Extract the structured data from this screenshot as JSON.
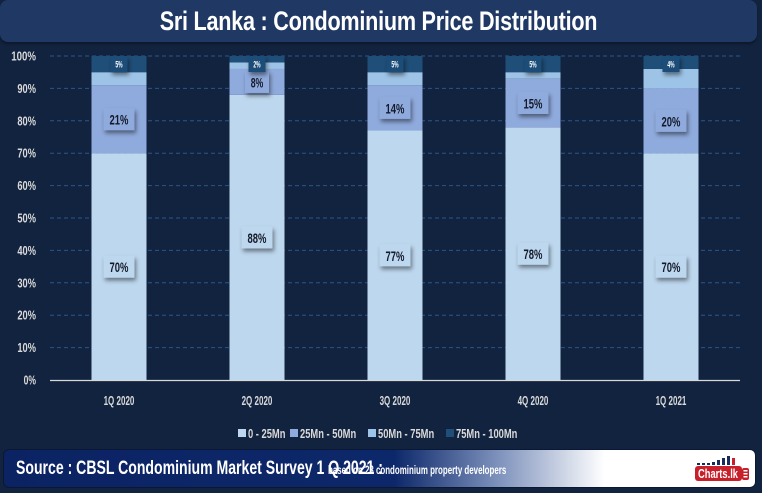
{
  "title": "Sri Lanka : Condominium Price Distribution",
  "chart_data": {
    "type": "bar",
    "stacked": true,
    "title": "Sri Lanka : Condominium Price Distribution",
    "xlabel": "",
    "ylabel": "",
    "categories": [
      "1Q 2020",
      "2Q 2020",
      "3Q 2020",
      "4Q 2020",
      "1Q 2021"
    ],
    "ylim": [
      0,
      100
    ],
    "yticks": [
      0,
      10,
      20,
      30,
      40,
      50,
      60,
      70,
      80,
      90,
      100
    ],
    "ytick_labels": [
      "0%",
      "10%",
      "20%",
      "30%",
      "40%",
      "50%",
      "60%",
      "70%",
      "80%",
      "90%",
      "100%"
    ],
    "grid": true,
    "legend": "bottom",
    "series": [
      {
        "name": "0 - 25Mn",
        "values": [
          70,
          88,
          77,
          78,
          70
        ],
        "labels": [
          "70%",
          "88%",
          "77%",
          "78%",
          "70%"
        ],
        "color": "#bdd7ee",
        "label_text_color": "#141a2a"
      },
      {
        "name": "25Mn - 50Mn",
        "values": [
          21,
          8,
          14,
          15,
          20
        ],
        "labels": [
          "21%",
          "8%",
          "14%",
          "15%",
          "20%"
        ],
        "color": "#8faadc",
        "label_text_color": "#141a2a"
      },
      {
        "name": "50Mn - 75Mn",
        "values": [
          4,
          2,
          4,
          2,
          6
        ],
        "labels": null,
        "color": "#9dc3e6",
        "label_text_color": "#141a2a"
      },
      {
        "name": "75Mn - 100Mn",
        "values": [
          5,
          2,
          5,
          5,
          4
        ],
        "labels": [
          "5%",
          "2%",
          "5%",
          "5%",
          "4%"
        ],
        "color": "#1f4e79",
        "label_text_color": "#ffffff"
      }
    ]
  },
  "footer": {
    "source": "Source : CBSL Condominium Market Survey 1 Q 2021 :",
    "note": "based on 23 condominium property developers"
  },
  "logo": {
    "text": "Charts.lk"
  }
}
